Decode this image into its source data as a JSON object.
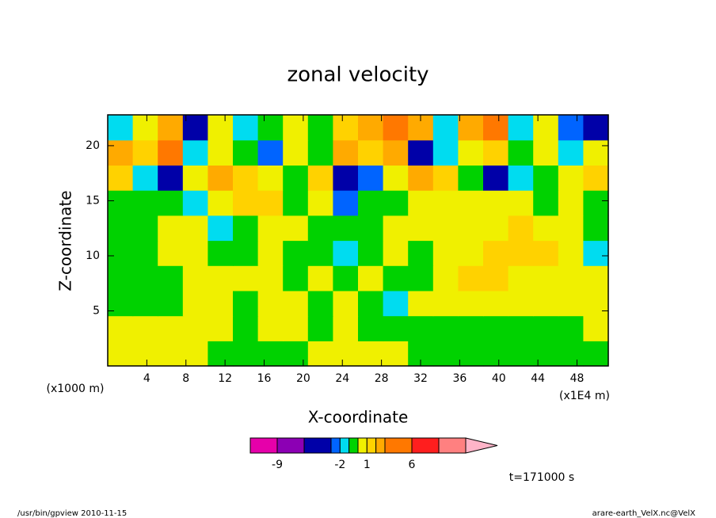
{
  "chart_data": {
    "type": "contour",
    "title": "zonal velocity",
    "x_label": "X-coordinate",
    "y_label": "Z-coordinate",
    "x_unit": "(x1E4 m)",
    "y_unit": "(x1000 m)",
    "xlim": [
      0,
      51.2
    ],
    "ylim": [
      0,
      22.8
    ],
    "xticks": [
      4,
      8,
      12,
      16,
      20,
      24,
      28,
      32,
      36,
      40,
      44,
      48
    ],
    "yticks": [
      5,
      10,
      15,
      20
    ],
    "z": [
      [
        0.5,
        0.5,
        0.5,
        0.5,
        -0.5,
        -0.5,
        -0.5,
        -0.5,
        0.5,
        0.5,
        0.5,
        0.5,
        -0.5,
        -0.5,
        -0.5,
        -0.5,
        -0.5,
        -0.5,
        -0.5,
        -0.5
      ],
      [
        0.5,
        0.5,
        0.5,
        0.5,
        0.5,
        -0.5,
        0.5,
        0.5,
        -0.5,
        0.5,
        -0.5,
        -0.5,
        -0.5,
        -0.5,
        -0.5,
        -0.5,
        -0.5,
        -0.5,
        -0.5,
        0.5
      ],
      [
        -0.5,
        -0.5,
        -0.5,
        0.5,
        0.5,
        -0.5,
        0.5,
        0.5,
        -0.5,
        0.5,
        -0.5,
        -1.5,
        0.5,
        0.5,
        0.5,
        0.5,
        0.5,
        0.5,
        0.5,
        0.5
      ],
      [
        -0.5,
        -0.5,
        -0.5,
        0.5,
        0.5,
        0.5,
        0.5,
        -0.5,
        0.5,
        -0.5,
        0.5,
        -0.5,
        -0.5,
        0.5,
        1.5,
        1.5,
        0.5,
        0.5,
        0.5,
        0.5
      ],
      [
        -0.5,
        -0.5,
        0.5,
        0.5,
        -0.5,
        -0.5,
        0.5,
        -0.5,
        -0.5,
        -1.5,
        -0.5,
        0.5,
        -0.5,
        0.5,
        0.5,
        1.5,
        1.5,
        1.5,
        0.5,
        -1.5
      ],
      [
        -0.5,
        -0.5,
        0.5,
        0.5,
        -1.5,
        -0.5,
        0.5,
        0.5,
        -0.5,
        -0.5,
        -0.5,
        0.5,
        0.5,
        0.5,
        0.5,
        0.5,
        1.5,
        0.5,
        0.5,
        -0.5
      ],
      [
        -0.5,
        -0.5,
        -0.5,
        -1.5,
        0.5,
        1.5,
        1.5,
        -0.5,
        0.5,
        -2.5,
        -0.5,
        -0.5,
        0.5,
        0.5,
        0.5,
        0.5,
        0.5,
        -0.5,
        0.5,
        -0.5
      ],
      [
        1.5,
        -1.5,
        -4,
        0.5,
        2.5,
        1.5,
        0.5,
        -0.5,
        1.5,
        -4,
        -2.5,
        0.5,
        2.5,
        1.5,
        -0.5,
        -4,
        -1.5,
        -0.5,
        0.5,
        1.5
      ],
      [
        2.5,
        1.5,
        4,
        -1.5,
        0.5,
        -0.5,
        -2.5,
        0.5,
        -0.5,
        2.5,
        1.5,
        2.5,
        -4,
        -1.5,
        0.5,
        1.5,
        -0.5,
        0.5,
        -1.5,
        0.5
      ],
      [
        -1.5,
        0.5,
        2.5,
        -4,
        0.5,
        -1.5,
        -0.5,
        0.5,
        -0.5,
        1.5,
        2.5,
        4,
        2.5,
        -1.5,
        2.5,
        4,
        -1.5,
        0.5,
        -2.5,
        -4
      ]
    ],
    "colorbar": {
      "levels": [
        -12,
        -9,
        -6,
        -3,
        -2,
        -1,
        0,
        1,
        2,
        3,
        6,
        9,
        12
      ],
      "colors": [
        "#e600aa",
        "#8c00b4",
        "#0000a8",
        "#0064ff",
        "#00dcf0",
        "#00d200",
        "#f0f000",
        "#ffd200",
        "#ffaa00",
        "#ff7800",
        "#ff1e1e",
        "#ff8080",
        "#ffb4c8"
      ],
      "ticks": [
        -9,
        -2,
        1,
        6
      ]
    },
    "time_label": "t=171000 s",
    "footer_left": "/usr/bin/gpview  2010-11-15",
    "footer_right": "arare-earth_VelX.nc@VelX"
  }
}
